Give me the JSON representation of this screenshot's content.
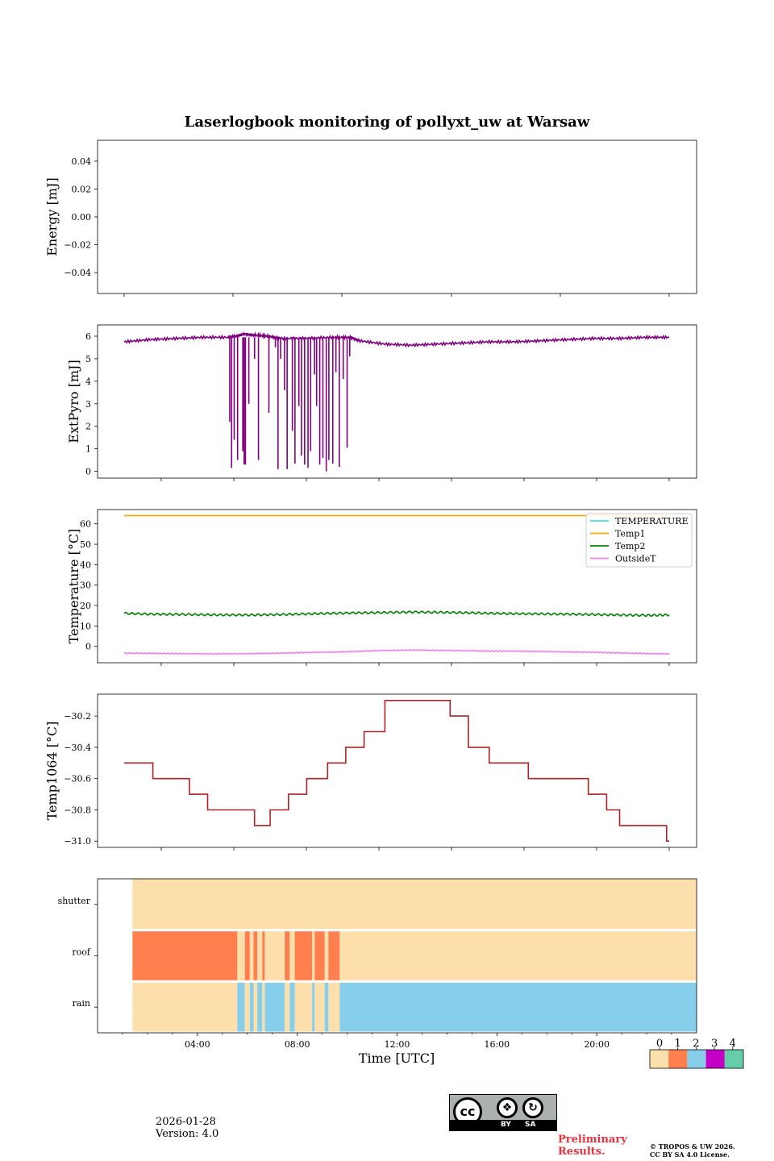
{
  "figure": {
    "title": "Laserlogbook monitoring of pollyxt_uw at Warsaw",
    "date": "2026-01-28",
    "version": "Version: 4.0",
    "preliminary": "Preliminary Results.",
    "copyright_line1": "© TROPOS & UW 2026.",
    "copyright_line2": "CC BY SA 4.0 License.",
    "cc_badge": {
      "by": "BY",
      "sa": "SA",
      "cc": "cc"
    }
  },
  "chart_data": [
    {
      "id": "energy",
      "type": "line",
      "ylabel": "Energy [mJ]",
      "ylim": [
        -0.055,
        0.055
      ],
      "yticks": [
        0.04,
        0.02,
        0.0,
        -0.02,
        -0.04
      ],
      "ytick_labels": [
        "0.04",
        "0.02",
        "0.00",
        "−0.02",
        "−0.04"
      ],
      "series": []
    },
    {
      "id": "extpyro",
      "type": "line",
      "ylabel": "ExtPyro [mJ]",
      "ylim": [
        -0.3,
        6.5
      ],
      "yticks": [
        0,
        1,
        2,
        3,
        4,
        5,
        6
      ],
      "ytick_labels": [
        "0",
        "1",
        "2",
        "3",
        "4",
        "5",
        "6"
      ],
      "series": [
        {
          "name": "ExtPyro",
          "color": "#800080",
          "x": [
            1.0,
            2.0,
            3.0,
            4.0,
            5.0,
            5.3,
            5.45,
            5.6,
            6.0,
            6.5,
            7.0,
            8.0,
            9.0,
            9.7,
            10.0,
            11.0,
            12.0,
            13.0,
            14.0,
            15.0,
            16.0,
            17.0,
            18.0,
            19.0,
            20.0,
            21.0,
            21.9
          ],
          "y": [
            5.75,
            5.85,
            5.9,
            5.95,
            5.95,
            6.0,
            6.05,
            6.1,
            6.05,
            6.0,
            5.9,
            5.9,
            5.95,
            5.95,
            5.8,
            5.65,
            5.6,
            5.65,
            5.7,
            5.75,
            5.75,
            5.8,
            5.85,
            5.9,
            5.9,
            5.95,
            5.95
          ]
        },
        {
          "name": "ExtPyro dropouts",
          "color": "#800080",
          "x": [
            5.05,
            5.12,
            5.22,
            5.35,
            5.55,
            5.6,
            5.65,
            5.78,
            6.0,
            6.15,
            6.55,
            6.8,
            6.9,
            7.0,
            7.15,
            7.25,
            7.45,
            7.55,
            7.7,
            7.8,
            7.92,
            8.05,
            8.15,
            8.3,
            8.38,
            8.5,
            8.62,
            8.75,
            8.85,
            9.0,
            9.12,
            9.25,
            9.4,
            9.55,
            9.65
          ],
          "y": [
            2.2,
            0.15,
            1.4,
            0.5,
            0.9,
            0.3,
            0.3,
            3.0,
            5.0,
            0.5,
            2.6,
            5.5,
            0.1,
            5.0,
            3.6,
            0.1,
            1.8,
            0.35,
            2.9,
            0.7,
            0.3,
            0.15,
            0.9,
            4.3,
            2.9,
            0.3,
            0.6,
            0.0,
            0.5,
            0.35,
            4.4,
            0.2,
            4.1,
            1.05,
            5.1
          ]
        }
      ]
    },
    {
      "id": "temperature",
      "type": "line",
      "ylabel": "Temperature [°C]",
      "ylim": [
        -8,
        67
      ],
      "yticks": [
        0,
        10,
        20,
        30,
        40,
        50,
        60
      ],
      "ytick_labels": [
        "0",
        "10",
        "20",
        "30",
        "40",
        "50",
        "60"
      ],
      "legend": {
        "location": "top-right",
        "entries": [
          "TEMPERATURE",
          "Temp1",
          "Temp2",
          "OutsideT"
        ]
      },
      "series": [
        {
          "name": "TEMPERATURE",
          "color": "#40e0e8",
          "x": [],
          "y": []
        },
        {
          "name": "Temp1",
          "color": "#ffa500",
          "x": [
            1.0,
            21.9
          ],
          "y": [
            64.0,
            64.0
          ]
        },
        {
          "name": "Temp2",
          "color": "#008000",
          "x": [
            1.0,
            2.0,
            3.0,
            4.0,
            5.0,
            6.0,
            7.0,
            8.0,
            9.0,
            10.0,
            11.0,
            12.0,
            13.0,
            14.0,
            15.0,
            16.0,
            17.0,
            18.0,
            19.0,
            20.0,
            21.0,
            21.9
          ],
          "y": [
            16.2,
            15.8,
            15.7,
            15.5,
            15.4,
            15.4,
            15.6,
            15.9,
            16.2,
            16.4,
            16.6,
            16.8,
            16.7,
            16.5,
            16.2,
            16.0,
            15.9,
            15.8,
            15.6,
            15.4,
            15.2,
            15.4
          ]
        },
        {
          "name": "OutsideT",
          "color": "#ee82ee",
          "x": [
            1.0,
            2.0,
            3.0,
            4.0,
            5.0,
            6.0,
            7.0,
            8.0,
            9.0,
            10.0,
            11.0,
            12.0,
            13.0,
            14.0,
            15.0,
            16.0,
            17.0,
            18.0,
            19.0,
            20.0,
            21.0,
            21.9
          ],
          "y": [
            -3.3,
            -3.4,
            -3.5,
            -3.6,
            -3.6,
            -3.5,
            -3.3,
            -3.0,
            -2.8,
            -2.4,
            -2.0,
            -1.8,
            -1.9,
            -2.1,
            -2.3,
            -2.3,
            -2.5,
            -2.7,
            -2.9,
            -3.2,
            -3.5,
            -3.6
          ]
        }
      ]
    },
    {
      "id": "temp1064",
      "type": "line",
      "ylabel": "Temp1064 [°C]",
      "ylim": [
        -31.04,
        -30.06
      ],
      "yticks": [
        -30.2,
        -30.4,
        -30.6,
        -30.8,
        -31.0
      ],
      "ytick_labels": [
        "−30.2",
        "−30.4",
        "−30.6",
        "−30.8",
        "−31.0"
      ],
      "series": [
        {
          "name": "Temp1064",
          "color": "#b22222",
          "step": true,
          "x": [
            1.0,
            2.1,
            3.5,
            4.2,
            6.0,
            6.6,
            7.3,
            8.0,
            8.8,
            9.5,
            10.2,
            11.0,
            13.5,
            14.2,
            15.0,
            15.5,
            16.5,
            18.8,
            19.5,
            20.0,
            21.8,
            21.9
          ],
          "y": [
            -30.5,
            -30.6,
            -30.7,
            -30.8,
            -30.9,
            -30.8,
            -30.7,
            -30.6,
            -30.5,
            -30.4,
            -30.3,
            -30.1,
            -30.2,
            -30.4,
            -30.5,
            -30.5,
            -30.6,
            -30.7,
            -30.8,
            -30.9,
            -31.0,
            -31.0
          ]
        }
      ]
    },
    {
      "id": "status",
      "type": "heatmap",
      "xlabel": "Time [UTC]",
      "xlim": [
        0,
        24
      ],
      "xticks": [
        4,
        8,
        12,
        16,
        20
      ],
      "xtick_labels": [
        "04:00",
        "08:00",
        "12:00",
        "16:00",
        "20:00"
      ],
      "rows": [
        "shutter",
        "roof",
        "rain"
      ],
      "data_start": 1.4,
      "colorbar": {
        "values": [
          0,
          1,
          2,
          3,
          4
        ],
        "labels": [
          "0",
          "1",
          "2",
          "3",
          "4"
        ],
        "colors": [
          "#fddfab",
          "#ff7f4f",
          "#87ceeb",
          "#c400c4",
          "#66cdaa"
        ]
      },
      "segments": {
        "shutter": [
          [
            1.4,
            24.0,
            0
          ]
        ],
        "roof": [
          [
            1.4,
            5.6,
            1
          ],
          [
            5.6,
            5.9,
            0
          ],
          [
            5.9,
            6.1,
            1
          ],
          [
            6.1,
            6.25,
            0
          ],
          [
            6.25,
            6.4,
            1
          ],
          [
            6.4,
            6.6,
            0
          ],
          [
            6.6,
            6.7,
            1
          ],
          [
            6.7,
            7.5,
            0
          ],
          [
            7.5,
            7.7,
            1
          ],
          [
            7.7,
            7.9,
            0
          ],
          [
            7.9,
            8.6,
            1
          ],
          [
            8.6,
            8.7,
            0
          ],
          [
            8.7,
            9.1,
            1
          ],
          [
            9.1,
            9.25,
            0
          ],
          [
            9.25,
            9.7,
            1
          ],
          [
            9.7,
            24.0,
            0
          ]
        ],
        "rain": [
          [
            1.4,
            5.6,
            0
          ],
          [
            5.6,
            5.9,
            2
          ],
          [
            5.9,
            6.1,
            0
          ],
          [
            6.1,
            6.25,
            2
          ],
          [
            6.25,
            6.4,
            0
          ],
          [
            6.4,
            6.6,
            2
          ],
          [
            6.6,
            6.7,
            0
          ],
          [
            6.7,
            7.5,
            2
          ],
          [
            7.5,
            7.7,
            0
          ],
          [
            7.7,
            7.9,
            2
          ],
          [
            7.9,
            8.6,
            0
          ],
          [
            8.6,
            8.7,
            2
          ],
          [
            8.7,
            9.1,
            0
          ],
          [
            9.1,
            9.25,
            2
          ],
          [
            9.25,
            9.7,
            0
          ],
          [
            9.7,
            24.0,
            2
          ]
        ]
      }
    }
  ]
}
